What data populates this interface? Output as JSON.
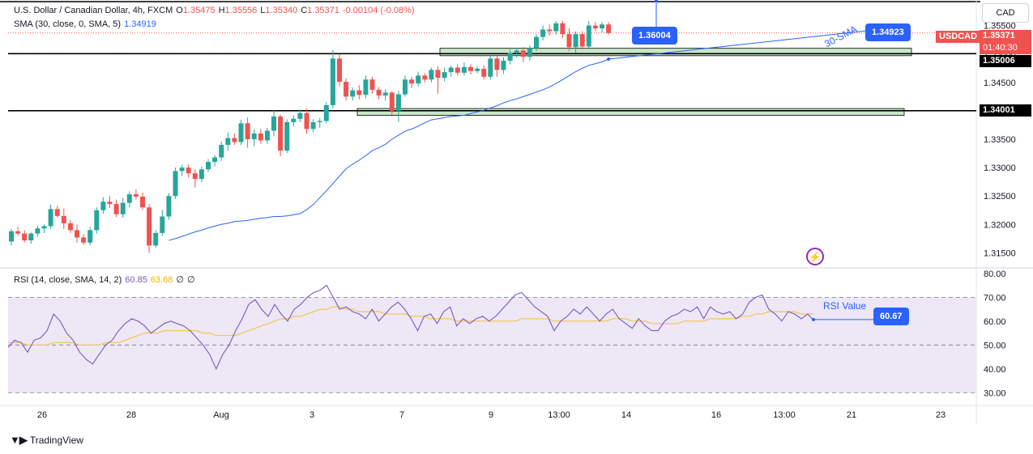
{
  "header": {
    "symbol_title": "U.S. Dollar / Canadian Dollar, 4h, FXCM",
    "o_label": "O",
    "o": "1.35475",
    "h_label": "H",
    "h": "1.35556",
    "l_label": "L",
    "l": "1.35340",
    "c_label": "C",
    "c": "1.35371",
    "change": "-0.00104 (-0.08%)",
    "sma_label": "SMA (30, close, 0, SMA, 5)",
    "sma_value": "1.34919",
    "rsi_label": "RSI (14, close, SMA, 14, 2)",
    "rsi_value": "60.85",
    "rsi_ma_value": "63.68",
    "rsi_extra1": "∅",
    "rsi_extra2": "∅"
  },
  "currency_button": "CAD",
  "symbol_badge": "USDCAD",
  "last_price": "1.35371",
  "countdown": "01:40:30",
  "brand": "TradingView",
  "colors": {
    "up": "#26a69a",
    "down": "#ef5350",
    "sma": "#2962ff",
    "rsi": "#7e57c2",
    "rsi_ma": "#f2c94c",
    "zone_fill": "#c8e6c9",
    "band_fill": "#ede7f6"
  },
  "chart_data": [
    {
      "type": "candlestick",
      "title": "U.S. Dollar / Canadian Dollar, 4h, FXCM",
      "y_ticks": [
        "1.35500",
        "1.35000",
        "1.34500",
        "1.34000",
        "1.33500",
        "1.33000",
        "1.32500",
        "1.32000",
        "1.31500"
      ],
      "y_tick_values": [
        1.355,
        1.35,
        1.345,
        1.34,
        1.335,
        1.33,
        1.325,
        1.32,
        1.315
      ],
      "ylim": [
        1.3125,
        1.3595
      ],
      "x_ticks": [
        "26",
        "28",
        "Aug",
        "3",
        "7",
        "9",
        "13:00",
        "14",
        "16",
        "13:00",
        "21",
        "23"
      ],
      "horizontal_levels": [
        {
          "label": "1.35006",
          "value": 1.35006
        },
        {
          "label": "1.34001",
          "value": 1.34001
        }
      ],
      "zones": [
        {
          "from": 1.3497,
          "to": 1.351
        },
        {
          "from": 1.3392,
          "to": 1.3404
        }
      ],
      "annotations": [
        {
          "text": "1.36004",
          "value": 1.36004
        },
        {
          "text": "1.34923",
          "value": 1.34923
        },
        {
          "text": "30-SMA"
        }
      ],
      "sma": [
        1.3172,
        1.3175,
        1.3179,
        1.3183,
        1.3187,
        1.319,
        1.3194,
        1.3197,
        1.32,
        1.3202,
        1.3205,
        1.3206,
        1.3207,
        1.3209,
        1.3211,
        1.3212,
        1.3214,
        1.3214,
        1.3215,
        1.3217,
        1.3219,
        1.3226,
        1.3235,
        1.3247,
        1.3259,
        1.3272,
        1.3285,
        1.3298,
        1.3306,
        1.3313,
        1.3321,
        1.333,
        1.3335,
        1.3341,
        1.335,
        1.3357,
        1.3364,
        1.3368,
        1.3373,
        1.3379,
        1.3384,
        1.3386,
        1.3388,
        1.339,
        1.3391,
        1.3392,
        1.3395,
        1.3398,
        1.3401,
        1.3405,
        1.3409,
        1.3414,
        1.3418,
        1.3421,
        1.3425,
        1.3429,
        1.3433,
        1.3437,
        1.3442,
        1.3448,
        1.3455,
        1.3462,
        1.3469,
        1.3475,
        1.348,
        1.3483,
        1.3486,
        1.3491
      ],
      "candles": [
        {
          "o": 1.317,
          "h": 1.3192,
          "l": 1.3163,
          "c": 1.3188
        },
        {
          "o": 1.3188,
          "h": 1.3196,
          "l": 1.318,
          "c": 1.3184
        },
        {
          "o": 1.3184,
          "h": 1.319,
          "l": 1.3168,
          "c": 1.3172
        },
        {
          "o": 1.3172,
          "h": 1.3186,
          "l": 1.3166,
          "c": 1.3184
        },
        {
          "o": 1.3184,
          "h": 1.3198,
          "l": 1.3178,
          "c": 1.3193
        },
        {
          "o": 1.3193,
          "h": 1.32,
          "l": 1.3185,
          "c": 1.3197
        },
        {
          "o": 1.3197,
          "h": 1.3235,
          "l": 1.3192,
          "c": 1.3227
        },
        {
          "o": 1.3227,
          "h": 1.3233,
          "l": 1.3212,
          "c": 1.3215
        },
        {
          "o": 1.3215,
          "h": 1.3228,
          "l": 1.3192,
          "c": 1.3202
        },
        {
          "o": 1.3202,
          "h": 1.3208,
          "l": 1.3185,
          "c": 1.319
        },
        {
          "o": 1.319,
          "h": 1.32,
          "l": 1.3168,
          "c": 1.3177
        },
        {
          "o": 1.3177,
          "h": 1.3183,
          "l": 1.3164,
          "c": 1.3168
        },
        {
          "o": 1.3168,
          "h": 1.3196,
          "l": 1.3163,
          "c": 1.319
        },
        {
          "o": 1.319,
          "h": 1.323,
          "l": 1.3184,
          "c": 1.3225
        },
        {
          "o": 1.3225,
          "h": 1.3248,
          "l": 1.3219,
          "c": 1.324
        },
        {
          "o": 1.324,
          "h": 1.325,
          "l": 1.3229,
          "c": 1.3236
        },
        {
          "o": 1.3236,
          "h": 1.3244,
          "l": 1.3213,
          "c": 1.3218
        },
        {
          "o": 1.3218,
          "h": 1.3247,
          "l": 1.3212,
          "c": 1.3238
        },
        {
          "o": 1.3238,
          "h": 1.3258,
          "l": 1.323,
          "c": 1.3253
        },
        {
          "o": 1.3253,
          "h": 1.3262,
          "l": 1.3244,
          "c": 1.3249
        },
        {
          "o": 1.3249,
          "h": 1.3256,
          "l": 1.3225,
          "c": 1.323
        },
        {
          "o": 1.323,
          "h": 1.3236,
          "l": 1.315,
          "c": 1.3163
        },
        {
          "o": 1.3163,
          "h": 1.319,
          "l": 1.3159,
          "c": 1.3185
        },
        {
          "o": 1.3185,
          "h": 1.3226,
          "l": 1.318,
          "c": 1.3214
        },
        {
          "o": 1.3214,
          "h": 1.3255,
          "l": 1.3208,
          "c": 1.325
        },
        {
          "o": 1.325,
          "h": 1.33,
          "l": 1.3245,
          "c": 1.3294
        },
        {
          "o": 1.3294,
          "h": 1.3305,
          "l": 1.3285,
          "c": 1.33
        },
        {
          "o": 1.33,
          "h": 1.3306,
          "l": 1.3283,
          "c": 1.329
        },
        {
          "o": 1.329,
          "h": 1.3297,
          "l": 1.3265,
          "c": 1.328
        },
        {
          "o": 1.328,
          "h": 1.3302,
          "l": 1.3274,
          "c": 1.3297
        },
        {
          "o": 1.3297,
          "h": 1.3315,
          "l": 1.3292,
          "c": 1.331
        },
        {
          "o": 1.331,
          "h": 1.3322,
          "l": 1.3302,
          "c": 1.3318
        },
        {
          "o": 1.3318,
          "h": 1.3346,
          "l": 1.3312,
          "c": 1.334
        },
        {
          "o": 1.334,
          "h": 1.3362,
          "l": 1.333,
          "c": 1.3352
        },
        {
          "o": 1.3352,
          "h": 1.336,
          "l": 1.334,
          "c": 1.3345
        },
        {
          "o": 1.3345,
          "h": 1.3384,
          "l": 1.334,
          "c": 1.3378
        },
        {
          "o": 1.3378,
          "h": 1.3388,
          "l": 1.3335,
          "c": 1.335
        },
        {
          "o": 1.335,
          "h": 1.3368,
          "l": 1.3338,
          "c": 1.336
        },
        {
          "o": 1.336,
          "h": 1.3368,
          "l": 1.3342,
          "c": 1.3348
        },
        {
          "o": 1.3348,
          "h": 1.337,
          "l": 1.3342,
          "c": 1.3365
        },
        {
          "o": 1.3365,
          "h": 1.3401,
          "l": 1.3355,
          "c": 1.339
        },
        {
          "o": 1.339,
          "h": 1.3393,
          "l": 1.332,
          "c": 1.333
        },
        {
          "o": 1.333,
          "h": 1.3385,
          "l": 1.3326,
          "c": 1.338
        },
        {
          "o": 1.338,
          "h": 1.3392,
          "l": 1.3372,
          "c": 1.3386
        },
        {
          "o": 1.3386,
          "h": 1.3402,
          "l": 1.338,
          "c": 1.3396
        },
        {
          "o": 1.3396,
          "h": 1.3404,
          "l": 1.336,
          "c": 1.3368
        },
        {
          "o": 1.3368,
          "h": 1.3385,
          "l": 1.3362,
          "c": 1.338
        },
        {
          "o": 1.338,
          "h": 1.3387,
          "l": 1.337,
          "c": 1.3382
        },
        {
          "o": 1.3382,
          "h": 1.3415,
          "l": 1.3378,
          "c": 1.341
        },
        {
          "o": 1.341,
          "h": 1.3507,
          "l": 1.3404,
          "c": 1.3492
        },
        {
          "o": 1.3492,
          "h": 1.35,
          "l": 1.3443,
          "c": 1.3451
        },
        {
          "o": 1.3451,
          "h": 1.3457,
          "l": 1.3418,
          "c": 1.3425
        },
        {
          "o": 1.3425,
          "h": 1.3441,
          "l": 1.3418,
          "c": 1.3436
        },
        {
          "o": 1.3436,
          "h": 1.3445,
          "l": 1.342,
          "c": 1.3428
        },
        {
          "o": 1.3428,
          "h": 1.3462,
          "l": 1.3422,
          "c": 1.3455
        },
        {
          "o": 1.3455,
          "h": 1.346,
          "l": 1.343,
          "c": 1.3437
        },
        {
          "o": 1.3437,
          "h": 1.3442,
          "l": 1.342,
          "c": 1.3427
        },
        {
          "o": 1.3427,
          "h": 1.3438,
          "l": 1.3418,
          "c": 1.3432
        },
        {
          "o": 1.3432,
          "h": 1.3434,
          "l": 1.339,
          "c": 1.34
        },
        {
          "o": 1.34,
          "h": 1.3435,
          "l": 1.338,
          "c": 1.3429
        },
        {
          "o": 1.3429,
          "h": 1.3462,
          "l": 1.3425,
          "c": 1.3455
        },
        {
          "o": 1.3455,
          "h": 1.346,
          "l": 1.344,
          "c": 1.3448
        },
        {
          "o": 1.3448,
          "h": 1.3469,
          "l": 1.3443,
          "c": 1.3462
        },
        {
          "o": 1.3462,
          "h": 1.3466,
          "l": 1.345,
          "c": 1.3455
        },
        {
          "o": 1.3455,
          "h": 1.3476,
          "l": 1.345,
          "c": 1.3472
        },
        {
          "o": 1.3472,
          "h": 1.3478,
          "l": 1.343,
          "c": 1.3458
        },
        {
          "o": 1.3458,
          "h": 1.3476,
          "l": 1.3452,
          "c": 1.3468
        },
        {
          "o": 1.3468,
          "h": 1.348,
          "l": 1.346,
          "c": 1.3476
        },
        {
          "o": 1.3476,
          "h": 1.3482,
          "l": 1.3462,
          "c": 1.3467
        },
        {
          "o": 1.3467,
          "h": 1.3485,
          "l": 1.3462,
          "c": 1.3477
        },
        {
          "o": 1.3477,
          "h": 1.3482,
          "l": 1.3464,
          "c": 1.347
        },
        {
          "o": 1.347,
          "h": 1.3478,
          "l": 1.3466,
          "c": 1.3474
        },
        {
          "o": 1.3474,
          "h": 1.348,
          "l": 1.3455,
          "c": 1.346
        },
        {
          "o": 1.346,
          "h": 1.3498,
          "l": 1.3455,
          "c": 1.3492
        },
        {
          "o": 1.3492,
          "h": 1.3496,
          "l": 1.346,
          "c": 1.3472
        },
        {
          "o": 1.3472,
          "h": 1.3494,
          "l": 1.3465,
          "c": 1.3488
        },
        {
          "o": 1.3488,
          "h": 1.3508,
          "l": 1.3482,
          "c": 1.3502
        },
        {
          "o": 1.3502,
          "h": 1.351,
          "l": 1.3494,
          "c": 1.3506
        },
        {
          "o": 1.3506,
          "h": 1.3512,
          "l": 1.3486,
          "c": 1.3495
        },
        {
          "o": 1.3495,
          "h": 1.3515,
          "l": 1.3488,
          "c": 1.351
        },
        {
          "o": 1.351,
          "h": 1.3535,
          "l": 1.3505,
          "c": 1.353
        },
        {
          "o": 1.353,
          "h": 1.355,
          "l": 1.3524,
          "c": 1.3543
        },
        {
          "o": 1.3543,
          "h": 1.3552,
          "l": 1.3532,
          "c": 1.354
        },
        {
          "o": 1.354,
          "h": 1.3558,
          "l": 1.3534,
          "c": 1.3554
        },
        {
          "o": 1.3554,
          "h": 1.3558,
          "l": 1.3528,
          "c": 1.3535
        },
        {
          "o": 1.3535,
          "h": 1.3545,
          "l": 1.3505,
          "c": 1.3512
        },
        {
          "o": 1.3512,
          "h": 1.354,
          "l": 1.3502,
          "c": 1.3535
        },
        {
          "o": 1.3535,
          "h": 1.354,
          "l": 1.3508,
          "c": 1.3513
        },
        {
          "o": 1.3513,
          "h": 1.3558,
          "l": 1.3508,
          "c": 1.355
        },
        {
          "o": 1.355,
          "h": 1.3556,
          "l": 1.354,
          "c": 1.3545
        },
        {
          "o": 1.3545,
          "h": 1.3556,
          "l": 1.3538,
          "c": 1.3552
        },
        {
          "o": 1.3552,
          "h": 1.3556,
          "l": 1.3534,
          "c": 1.3537
        }
      ]
    },
    {
      "type": "line",
      "title": "RSI (14, close, SMA, 14, 2)",
      "y_ticks": [
        "80.00",
        "70.00",
        "60.00",
        "50.00",
        "40.00",
        "30.00"
      ],
      "y_tick_values": [
        80,
        70,
        60,
        50,
        40,
        30
      ],
      "ylim": [
        25,
        82
      ],
      "band": [
        30,
        70
      ],
      "midline": 50,
      "annotations": [
        {
          "text": "RSI Value"
        },
        {
          "text": "60.67",
          "value": 60.67
        }
      ],
      "series": [
        {
          "values": [
            49,
            52,
            51,
            47,
            52,
            53,
            56,
            63,
            60,
            55,
            52,
            47,
            44,
            42,
            46,
            50,
            52,
            56,
            59,
            61,
            60,
            58,
            55,
            57,
            59,
            60,
            59,
            58,
            56,
            53,
            50,
            46,
            40,
            46,
            50,
            56,
            61,
            67,
            69,
            65,
            62,
            67,
            63,
            60,
            65,
            67,
            70,
            72,
            73,
            75,
            70,
            65,
            66,
            64,
            63,
            61,
            65,
            60,
            63,
            66,
            68,
            65,
            61,
            56,
            62,
            63,
            59,
            64,
            66,
            58,
            61,
            59,
            61,
            62,
            60,
            62,
            65,
            68,
            71,
            72,
            69,
            66,
            64,
            62,
            56,
            60,
            62,
            65,
            63,
            66,
            63,
            60,
            63,
            65,
            61,
            59,
            57,
            61,
            58,
            56,
            56,
            60,
            62,
            63,
            65,
            64,
            66,
            61,
            66,
            64,
            63,
            64,
            61,
            63,
            68,
            70,
            71,
            65,
            63,
            60,
            64,
            63,
            61,
            63,
            60
          ]
        },
        {
          "values": [
            51,
            51,
            51,
            50,
            50,
            50,
            50,
            51,
            51,
            51,
            51,
            50,
            50,
            50,
            50,
            51,
            51,
            51,
            52,
            53,
            54,
            55,
            55,
            55,
            56,
            56,
            56,
            56,
            56,
            56,
            55,
            55,
            54,
            54,
            54,
            54,
            55,
            56,
            57,
            58,
            59,
            60,
            61,
            61,
            62,
            62,
            63,
            64,
            65,
            65,
            66,
            66,
            65,
            65,
            64,
            64,
            64,
            64,
            63,
            63,
            63,
            63,
            62,
            62,
            62,
            61,
            61,
            61,
            61,
            60,
            60,
            60,
            60,
            60,
            60,
            60,
            60,
            60,
            60,
            61,
            61,
            61,
            61,
            61,
            60,
            60,
            60,
            60,
            60,
            60,
            60,
            60,
            60,
            61,
            61,
            61,
            60,
            60,
            60,
            59,
            59,
            59,
            59,
            59,
            60,
            60,
            60,
            60,
            61,
            61,
            61,
            61,
            61,
            62,
            62,
            63,
            63,
            64,
            64,
            64,
            64,
            64,
            63,
            63,
            63
          ]
        }
      ]
    }
  ]
}
